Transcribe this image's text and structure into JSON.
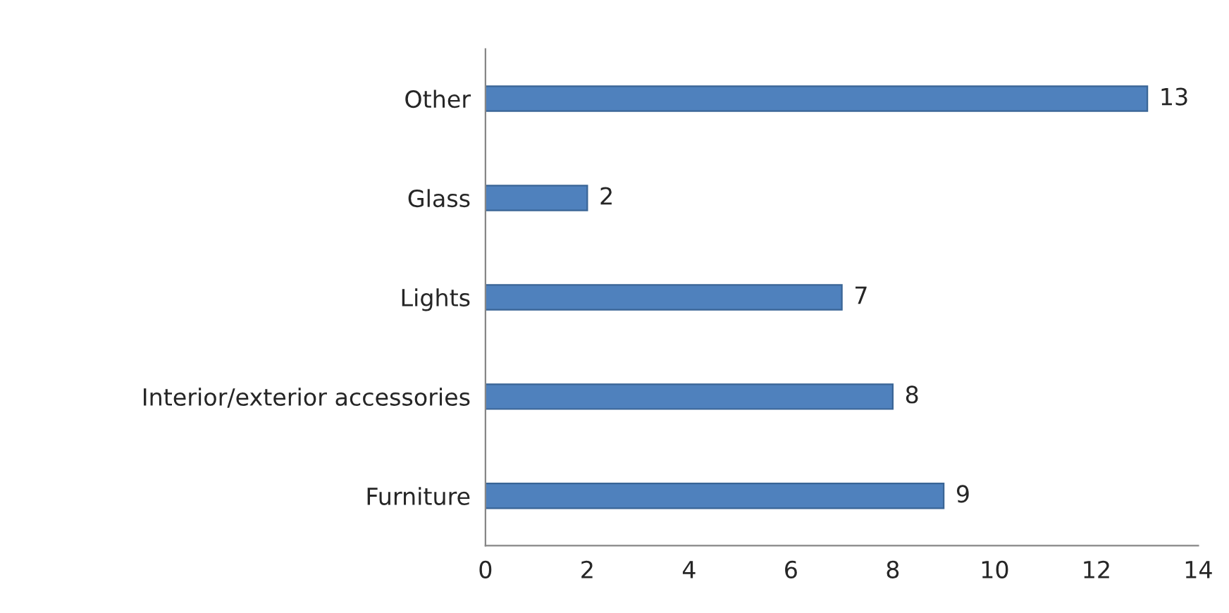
{
  "chart_data": {
    "type": "bar",
    "orientation": "horizontal",
    "categories": [
      "Other",
      "Glass",
      "Lights",
      "Interior/exterior accessories",
      "Furniture"
    ],
    "values": [
      13,
      2,
      7,
      8,
      9
    ],
    "color": "#4f81bd",
    "xlim": [
      0,
      14
    ],
    "xticks": [
      0,
      2,
      4,
      6,
      8,
      10,
      12,
      14
    ],
    "grid": false,
    "data_labels": true
  }
}
